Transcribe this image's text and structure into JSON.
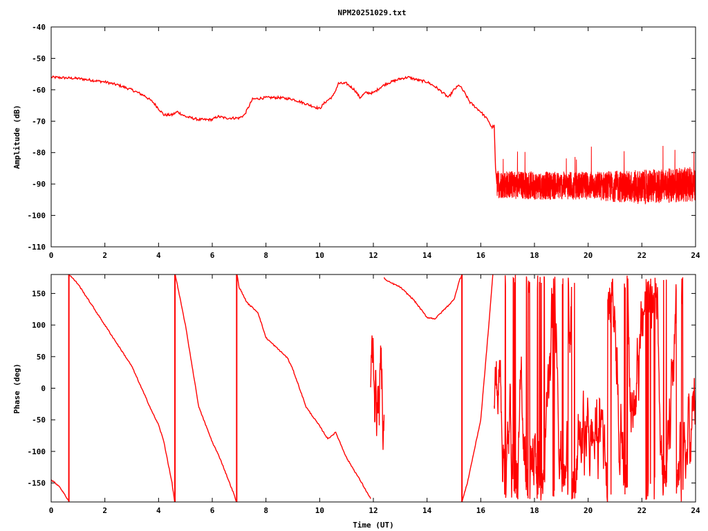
{
  "chart_data": [
    {
      "type": "line",
      "title": "NPM20251029.txt",
      "xlabel": "",
      "ylabel": "Amplitude (dB)",
      "xlim": [
        0,
        24
      ],
      "ylim": [
        -110,
        -40
      ],
      "xticks": [
        "0",
        "2",
        "4",
        "6",
        "8",
        "10",
        "12",
        "14",
        "16",
        "18",
        "20",
        "22",
        "24"
      ],
      "yticks": [
        "-40",
        "-50",
        "-60",
        "-70",
        "-80",
        "-90",
        "-100",
        "-110"
      ],
      "color": "#ff0000",
      "series": [
        {
          "name": "amplitude",
          "x": [
            0,
            1,
            2,
            2.5,
            3,
            3.5,
            3.8,
            4,
            4.2,
            4.5,
            4.7,
            5,
            5.5,
            6,
            6.2,
            6.5,
            7,
            7.2,
            7.5,
            8,
            8.5,
            9,
            9.5,
            10,
            10.2,
            10.5,
            10.7,
            11,
            11.3,
            11.5,
            11.7,
            12,
            12.3,
            12.5,
            13,
            13.3,
            13.7,
            14,
            14.3,
            14.6,
            14.8,
            15,
            15.2,
            15.4,
            15.6,
            16,
            16.3,
            16.4,
            16.5,
            16.55,
            16.6
          ],
          "y": [
            -56,
            -56.4,
            -57.5,
            -58.5,
            -60,
            -62,
            -64,
            -66,
            -68,
            -68,
            -67,
            -68.5,
            -69.5,
            -69.5,
            -68.5,
            -69,
            -69,
            -68,
            -63,
            -62.5,
            -62.5,
            -63,
            -64.5,
            -66,
            -64,
            -62,
            -58,
            -58,
            -60,
            -62.5,
            -61,
            -61,
            -59,
            -58,
            -56.5,
            -56,
            -57,
            -57.5,
            -59,
            -61,
            -62.5,
            -60,
            -58.5,
            -61,
            -64,
            -67,
            -70,
            -72,
            -71.5,
            -85,
            -90
          ]
        },
        {
          "name": "amplitude-noise-envelope",
          "x": [
            16.6,
            18,
            20,
            22,
            24
          ],
          "mean": [
            -90,
            -90.5,
            -90.5,
            -91,
            -90
          ],
          "spread": [
            4.5,
            4.5,
            4.5,
            5.5,
            5.5
          ]
        }
      ]
    },
    {
      "type": "line",
      "title": "",
      "xlabel": "Time (UT)",
      "ylabel": "Phase (deg)",
      "xlim": [
        0,
        24
      ],
      "ylim": [
        -180,
        180
      ],
      "xticks": [
        "0",
        "2",
        "4",
        "6",
        "8",
        "10",
        "12",
        "14",
        "16",
        "18",
        "20",
        "22",
        "24"
      ],
      "yticks": [
        "150",
        "100",
        "50",
        "0",
        "-50",
        "-100",
        "-150"
      ],
      "color": "#ff0000",
      "series": [
        {
          "name": "phase-seg-1",
          "x": [
            0,
            0.3,
            0.65
          ],
          "y": [
            -145,
            -155,
            -178
          ]
        },
        {
          "name": "phase-seg-2",
          "x": [
            0.67,
            1,
            2,
            3,
            3.8,
            4,
            4.2,
            4.5,
            4.6
          ],
          "y": [
            180,
            165,
            100,
            35,
            -41,
            -58,
            -85,
            -150,
            -180
          ]
        },
        {
          "name": "phase-seg-3",
          "x": [
            4.62,
            5,
            5.5,
            6,
            6.3,
            6.8,
            6.9
          ],
          "y": [
            180,
            100,
            -30,
            -85,
            -112,
            -167,
            -180
          ]
        },
        {
          "name": "phase-seg-4",
          "x": [
            6.92,
            7,
            7.3,
            7.7,
            8,
            8.5,
            8.8,
            9,
            9.5,
            10,
            10.3,
            10.6,
            11,
            11.5,
            11.9
          ],
          "y": [
            180,
            160,
            135,
            120,
            80,
            60,
            48,
            30,
            -30,
            -60,
            -80,
            -70,
            -110,
            -145,
            -175
          ]
        },
        {
          "name": "phase-seg-5",
          "x": [
            12.4,
            12.5,
            13,
            13.5,
            14,
            14.3,
            15,
            15.2,
            15.3
          ],
          "y": [
            175,
            170,
            160,
            140,
            112,
            110,
            140,
            170,
            180
          ]
        },
        {
          "name": "phase-seg-6",
          "x": [
            15.3,
            15.5,
            16,
            16.3,
            16.45
          ],
          "y": [
            -180,
            -150,
            -50,
            100,
            180
          ]
        },
        {
          "name": "phase-noise",
          "x": [
            11.9,
            12.4,
            16.5,
            24
          ],
          "note": "wrapping"
        }
      ]
    }
  ]
}
